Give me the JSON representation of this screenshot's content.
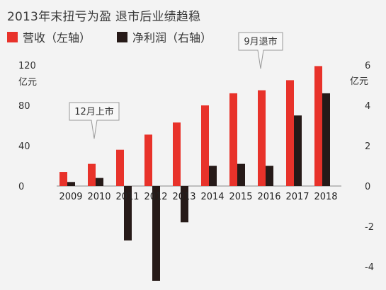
{
  "title": "2013年末扭亏为盈 退市后业绩趋稳",
  "colors": {
    "revenue": "#e8322a",
    "net_profit": "#261a18",
    "background": "#f3f3f3"
  },
  "legend": {
    "revenue_label": "营收（左轴）",
    "net_profit_label": "净利润（右轴）"
  },
  "chart_data": {
    "type": "bar",
    "title": "2013年末扭亏为盈 退市后业绩趋稳",
    "categories": [
      "2009",
      "2010",
      "2011",
      "2012",
      "2013",
      "2014",
      "2015",
      "2016",
      "2017",
      "2018"
    ],
    "series": [
      {
        "name": "营收（左轴）",
        "axis": "left",
        "values": [
          14,
          22,
          36,
          51,
          63,
          80,
          92,
          95,
          105,
          119
        ]
      },
      {
        "name": "净利润（右轴）",
        "axis": "right",
        "values": [
          0.2,
          0.4,
          -2.7,
          -4.7,
          -1.8,
          1.0,
          1.1,
          1.0,
          3.5,
          4.6
        ]
      }
    ],
    "left_axis": {
      "unit": "亿元",
      "ticks": [
        "0",
        "40",
        "80",
        "120"
      ],
      "ylim": [
        -81,
        120
      ]
    },
    "right_axis": {
      "unit": "亿元",
      "ticks": [
        "-4",
        "-2",
        "0",
        "2",
        "4",
        "6"
      ],
      "ylim": [
        -4.7,
        6.3
      ]
    },
    "annotations": [
      {
        "text": "12月上市",
        "category": "2010"
      },
      {
        "text": "9月退市",
        "category": "2016"
      }
    ],
    "grid": false,
    "legend_position": "top-left"
  }
}
